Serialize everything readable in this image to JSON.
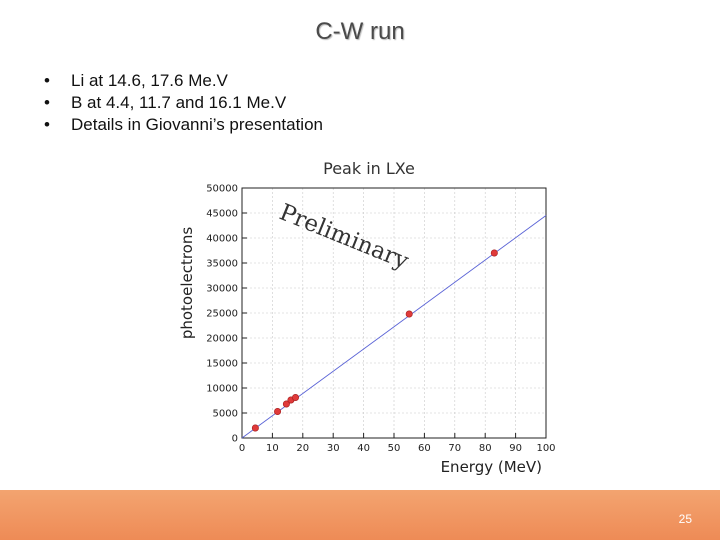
{
  "slide": {
    "title": "C-W run",
    "bullets": [
      "Li at 14.6, 17.6 Me.V",
      "B at 4.4, 11.7 and 16.1 Me.V",
      "Details in Giovanni’s presentation"
    ],
    "page_number": "25"
  },
  "colors": {
    "footer": "#ee8b56",
    "fit_line": "#5a63d6",
    "points": "#e03a3a",
    "grid": "#c8c8c8"
  },
  "chart_data": {
    "type": "scatter",
    "title": "Peak in LXe",
    "xlabel": "Energy (MeV)",
    "ylabel": "photoelectrons",
    "xlim": [
      0,
      100
    ],
    "ylim": [
      0,
      50000
    ],
    "x_ticks": [
      0,
      10,
      20,
      30,
      40,
      50,
      60,
      70,
      80,
      90,
      100
    ],
    "y_ticks": [
      0,
      5000,
      10000,
      15000,
      20000,
      25000,
      30000,
      35000,
      40000,
      45000,
      50000
    ],
    "grid": true,
    "watermark": "Preliminary",
    "series": [
      {
        "points": [
          {
            "x": 4.4,
            "y": 2000
          },
          {
            "x": 11.7,
            "y": 5300
          },
          {
            "x": 14.6,
            "y": 6800
          },
          {
            "x": 16.1,
            "y": 7600
          },
          {
            "x": 17.6,
            "y": 8100
          },
          {
            "x": 55,
            "y": 24800
          },
          {
            "x": 83,
            "y": 37000
          }
        ]
      }
    ],
    "fit_line": {
      "x": [
        0,
        100
      ],
      "y": [
        0,
        44500
      ]
    }
  }
}
